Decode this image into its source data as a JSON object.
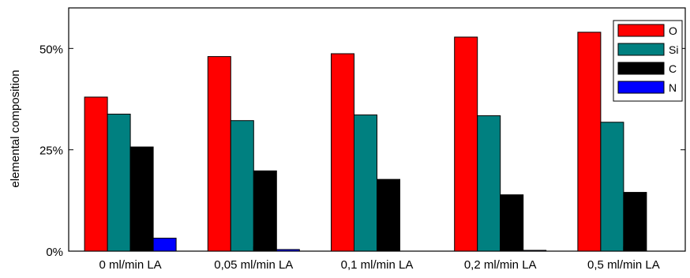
{
  "chart_data": {
    "type": "bar",
    "title": "",
    "xlabel": "",
    "ylabel": "elemental composition",
    "ylim": [
      0,
      0.6
    ],
    "yticks": [
      {
        "value": 0,
        "label": "0%"
      },
      {
        "value": 0.25,
        "label": "25%"
      },
      {
        "value": 0.5,
        "label": "50%"
      }
    ],
    "grid": false,
    "legend_position": "top-right",
    "categories": [
      "0 ml/min LA",
      "0,05 ml/min LA",
      "0,1 ml/min LA",
      "0,2 ml/min LA",
      "0,5 ml/min LA"
    ],
    "series": [
      {
        "name": "O",
        "color": "#ff0000",
        "values": [
          0.38,
          0.48,
          0.487,
          0.528,
          0.54
        ]
      },
      {
        "name": "Si",
        "color": "#008080",
        "values": [
          0.338,
          0.322,
          0.336,
          0.334,
          0.318
        ]
      },
      {
        "name": "C",
        "color": "#000000",
        "values": [
          0.257,
          0.198,
          0.177,
          0.139,
          0.145
        ]
      },
      {
        "name": "N",
        "color": "#0000ff",
        "values": [
          0.032,
          0.004,
          0.0,
          0.002,
          0.0
        ]
      }
    ]
  }
}
